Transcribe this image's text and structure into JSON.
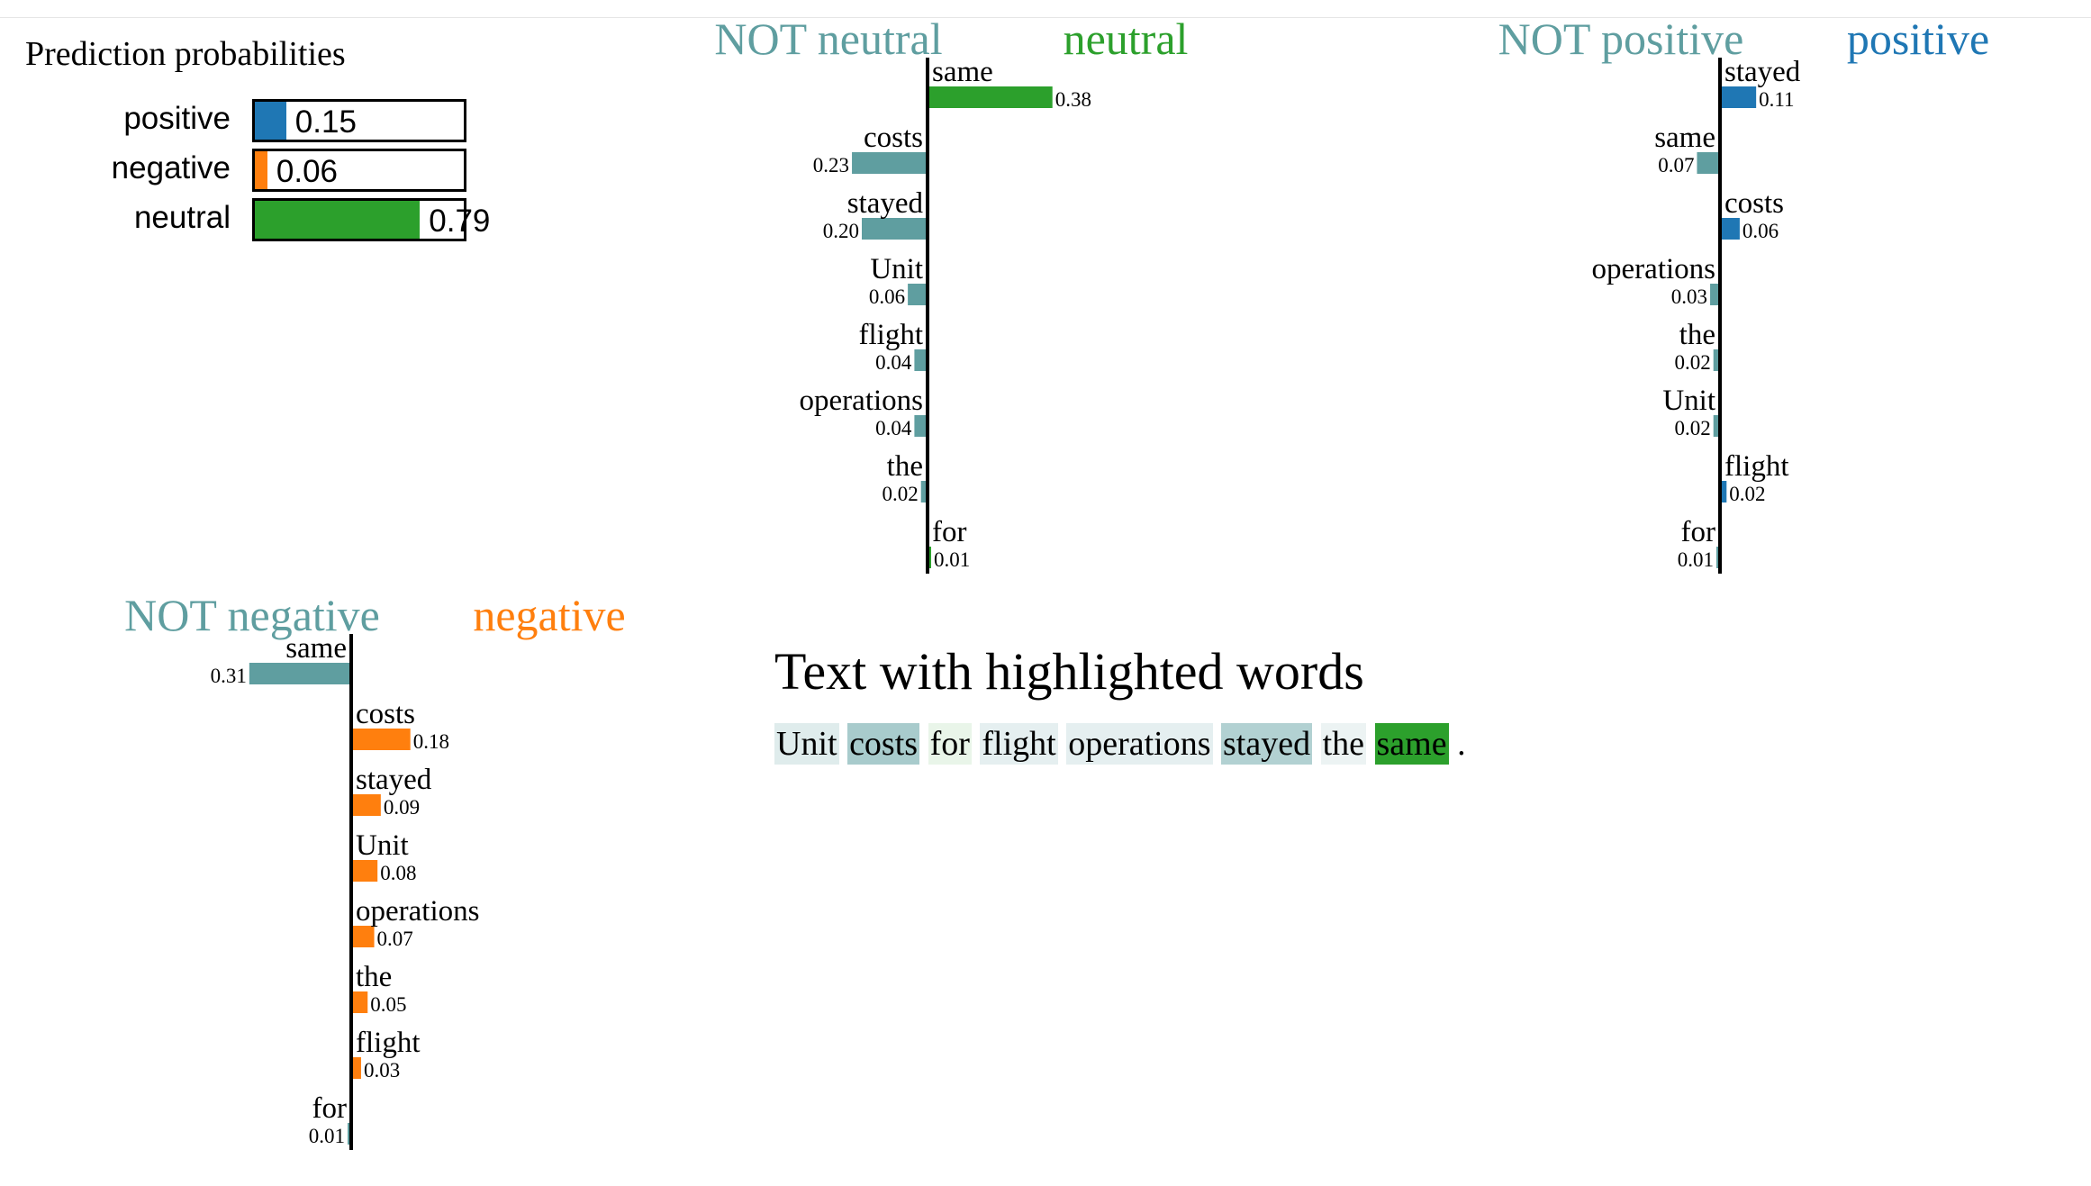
{
  "prediction_probabilities": {
    "title": "Prediction probabilities",
    "items": [
      {
        "label": "positive",
        "value": 0.15,
        "display": "0.15",
        "color": "#1f77b4"
      },
      {
        "label": "negative",
        "value": 0.06,
        "display": "0.06",
        "color": "#ff7f0e"
      },
      {
        "label": "neutral",
        "value": 0.79,
        "display": "0.79",
        "color": "#2ca02c"
      }
    ]
  },
  "chart_data": [
    {
      "type": "bar",
      "orientation": "horizontal-diverging",
      "title_left": "NOT neutral",
      "title_right": "neutral",
      "color_left": "#5f9ea0",
      "color_right": "#2ca02c",
      "features": [
        {
          "word": "same",
          "value": 0.38,
          "label": "0.38"
        },
        {
          "word": "costs",
          "value": -0.23,
          "label": "0.23"
        },
        {
          "word": "stayed",
          "value": -0.2,
          "label": "0.20"
        },
        {
          "word": "Unit",
          "value": -0.06,
          "label": "0.06"
        },
        {
          "word": "flight",
          "value": -0.04,
          "label": "0.04"
        },
        {
          "word": "operations",
          "value": -0.04,
          "label": "0.04"
        },
        {
          "word": "the",
          "value": -0.02,
          "label": "0.02"
        },
        {
          "word": "for",
          "value": 0.01,
          "label": "0.01"
        }
      ]
    },
    {
      "type": "bar",
      "orientation": "horizontal-diverging",
      "title_left": "NOT positive",
      "title_right": "positive",
      "color_left": "#5f9ea0",
      "color_right": "#1f77b4",
      "features": [
        {
          "word": "stayed",
          "value": 0.11,
          "label": "0.11"
        },
        {
          "word": "same",
          "value": -0.07,
          "label": "0.07"
        },
        {
          "word": "costs",
          "value": 0.06,
          "label": "0.06"
        },
        {
          "word": "operations",
          "value": -0.03,
          "label": "0.03"
        },
        {
          "word": "the",
          "value": -0.02,
          "label": "0.02"
        },
        {
          "word": "Unit",
          "value": -0.02,
          "label": "0.02"
        },
        {
          "word": "flight",
          "value": 0.02,
          "label": "0.02"
        },
        {
          "word": "for",
          "value": -0.01,
          "label": "0.01"
        }
      ]
    },
    {
      "type": "bar",
      "orientation": "horizontal-diverging",
      "title_left": "NOT negative",
      "title_right": "negative",
      "color_left": "#5f9ea0",
      "color_right": "#ff7f0e",
      "features": [
        {
          "word": "same",
          "value": -0.31,
          "label": "0.31"
        },
        {
          "word": "costs",
          "value": 0.18,
          "label": "0.18"
        },
        {
          "word": "stayed",
          "value": 0.09,
          "label": "0.09"
        },
        {
          "word": "Unit",
          "value": 0.08,
          "label": "0.08"
        },
        {
          "word": "operations",
          "value": 0.07,
          "label": "0.07"
        },
        {
          "word": "the",
          "value": 0.05,
          "label": "0.05"
        },
        {
          "word": "flight",
          "value": 0.03,
          "label": "0.03"
        },
        {
          "word": "for",
          "value": -0.01,
          "label": "0.01"
        }
      ]
    }
  ],
  "highlighted_text": {
    "title": "Text with highlighted words",
    "tokens": [
      {
        "text": "Unit",
        "weight": -0.06,
        "color": "#5f9ea0"
      },
      {
        "text": "costs",
        "weight": -0.23,
        "color": "#5f9ea0"
      },
      {
        "text": "for",
        "weight": 0.01,
        "color": "#2ca02c"
      },
      {
        "text": "flight",
        "weight": -0.04,
        "color": "#5f9ea0"
      },
      {
        "text": "operations",
        "weight": -0.04,
        "color": "#5f9ea0"
      },
      {
        "text": "stayed",
        "weight": -0.2,
        "color": "#5f9ea0"
      },
      {
        "text": "the",
        "weight": -0.02,
        "color": "#5f9ea0"
      },
      {
        "text": "same",
        "weight": 0.38,
        "color": "#2ca02c"
      }
    ],
    "trailing": "."
  }
}
